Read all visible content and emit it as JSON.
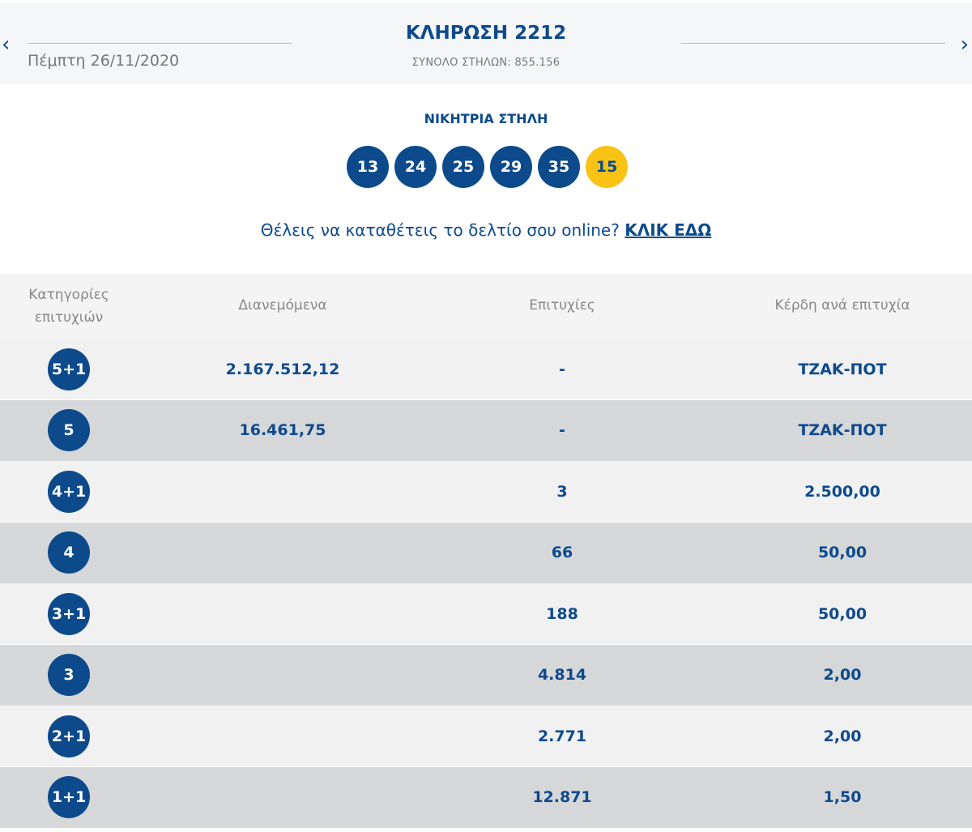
{
  "header": {
    "prev_icon": "chevron-left-icon",
    "next_icon": "chevron-right-icon",
    "date": "Πέμπτη 26/11/2020",
    "title": "ΚΛΗΡΩΣΗ 2212",
    "total_columns": "ΣΥΝΟΛΟ ΣΤΗΛΩΝ: 855.156"
  },
  "winning": {
    "title": "ΝΙΚΗΤΡΙΑ ΣΤΗΛΗ",
    "numbers": [
      "13",
      "24",
      "25",
      "29",
      "35"
    ],
    "bonus": "15"
  },
  "promo": {
    "text": "Θέλεις να καταθέτεις το δελτίο σου online? ",
    "link": "ΚΛΙΚ ΕΔΩ"
  },
  "colors": {
    "primary": "#0d4a8c",
    "bonus": "#f8c315",
    "row_light": "#f1f1f1",
    "row_dark": "#d6d7d9"
  },
  "table": {
    "headers": [
      "Κατηγορίες επιτυχιών",
      "Διανεμόμενα",
      "Επιτυχίες",
      "Κέρδη ανά επιτυχία"
    ],
    "rows": [
      {
        "cat": "5+1",
        "distributed": "2.167.512,12",
        "winners": "-",
        "prize": "ΤΖΑΚ-ΠΟΤ"
      },
      {
        "cat": "5",
        "distributed": "16.461,75",
        "winners": "-",
        "prize": "ΤΖΑΚ-ΠΟΤ"
      },
      {
        "cat": "4+1",
        "distributed": "",
        "winners": "3",
        "prize": "2.500,00"
      },
      {
        "cat": "4",
        "distributed": "",
        "winners": "66",
        "prize": "50,00"
      },
      {
        "cat": "3+1",
        "distributed": "",
        "winners": "188",
        "prize": "50,00"
      },
      {
        "cat": "3",
        "distributed": "",
        "winners": "4.814",
        "prize": "2,00"
      },
      {
        "cat": "2+1",
        "distributed": "",
        "winners": "2.771",
        "prize": "2,00"
      },
      {
        "cat": "1+1",
        "distributed": "",
        "winners": "12.871",
        "prize": "1,50"
      }
    ]
  }
}
